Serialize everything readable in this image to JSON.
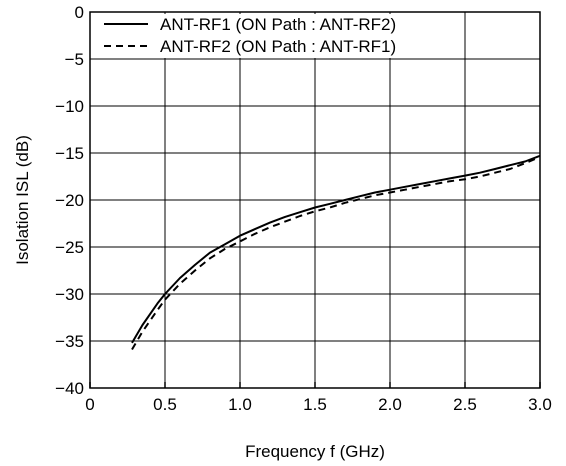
{
  "chart_data": {
    "type": "line",
    "title": "",
    "xlabel": "Frequency  f (GHz)",
    "ylabel": "Isolation  ISL (dB)",
    "xlim": [
      0,
      3.0
    ],
    "ylim": [
      -40,
      0
    ],
    "x_ticks": [
      0,
      0.5,
      1.0,
      1.5,
      2.0,
      2.5,
      3.0
    ],
    "x_tick_labels": [
      "0",
      "0.5",
      "1.0",
      "1.5",
      "2.0",
      "2.5",
      "3.0"
    ],
    "y_ticks": [
      0,
      -5,
      -10,
      -15,
      -20,
      -25,
      -30,
      -35,
      -40
    ],
    "y_tick_labels": [
      "0",
      "−5",
      "−10",
      "−15",
      "−20",
      "−25",
      "−30",
      "−35",
      "−40"
    ],
    "grid": true,
    "legend_position": "top-left",
    "series": [
      {
        "name": "ANT-RF1 (ON Path : ANT-RF2)",
        "style": "solid",
        "color": "#000000",
        "x": [
          0.28,
          0.35,
          0.45,
          0.5,
          0.6,
          0.7,
          0.8,
          0.9,
          1.0,
          1.1,
          1.2,
          1.3,
          1.4,
          1.5,
          1.6,
          1.7,
          1.8,
          1.9,
          2.0,
          2.1,
          2.2,
          2.3,
          2.4,
          2.5,
          2.6,
          2.7,
          2.8,
          2.9,
          3.0
        ],
        "y": [
          -35.2,
          -33.3,
          -31.0,
          -30.0,
          -28.3,
          -26.9,
          -25.6,
          -24.7,
          -23.8,
          -23.1,
          -22.4,
          -21.8,
          -21.3,
          -20.8,
          -20.4,
          -20.0,
          -19.6,
          -19.2,
          -18.9,
          -18.6,
          -18.3,
          -18.0,
          -17.7,
          -17.4,
          -17.1,
          -16.7,
          -16.3,
          -15.9,
          -15.3
        ]
      },
      {
        "name": "ANT-RF2 (ON Path : ANT-RF1)",
        "style": "dashed",
        "color": "#000000",
        "x": [
          0.28,
          0.35,
          0.45,
          0.5,
          0.6,
          0.7,
          0.8,
          0.9,
          1.0,
          1.1,
          1.2,
          1.3,
          1.4,
          1.5,
          1.6,
          1.7,
          1.8,
          1.9,
          2.0,
          2.1,
          2.2,
          2.3,
          2.4,
          2.5,
          2.6,
          2.7,
          2.8,
          2.9,
          3.0
        ],
        "y": [
          -35.9,
          -34.0,
          -31.7,
          -30.6,
          -28.9,
          -27.5,
          -26.2,
          -25.2,
          -24.4,
          -23.6,
          -22.9,
          -22.3,
          -21.7,
          -21.2,
          -20.8,
          -20.3,
          -19.9,
          -19.5,
          -19.2,
          -18.9,
          -18.6,
          -18.3,
          -18.0,
          -17.8,
          -17.5,
          -17.1,
          -16.7,
          -16.1,
          -15.4
        ]
      }
    ]
  }
}
